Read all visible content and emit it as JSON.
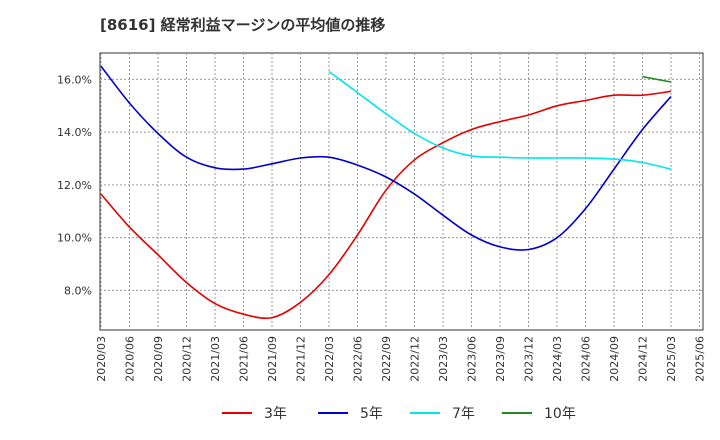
{
  "chart_data": {
    "type": "line",
    "title": "[8616]  経常利益マージンの平均値の推移",
    "xlabel": "",
    "ylabel": "",
    "x_tick_labels": [
      "2020/03",
      "2020/06",
      "2020/09",
      "2020/12",
      "2021/03",
      "2021/06",
      "2021/09",
      "2021/12",
      "2022/03",
      "2022/06",
      "2022/09",
      "2022/12",
      "2023/03",
      "2023/06",
      "2023/09",
      "2023/12",
      "2024/03",
      "2024/06",
      "2024/09",
      "2024/12",
      "2025/03",
      "2025/06"
    ],
    "y_tick_labels": [
      "8.0%",
      "10.0%",
      "12.0%",
      "14.0%",
      "16.0%"
    ],
    "y_ticks": [
      8,
      10,
      12,
      14,
      16
    ],
    "ylim": [
      6.5,
      17.0
    ],
    "grid": true,
    "legend_position": "bottom",
    "series": [
      {
        "name": "3年",
        "color": "#e60000",
        "points": [
          [
            "2020/03",
            11.65
          ],
          [
            "2020/06",
            10.4
          ],
          [
            "2020/09",
            9.35
          ],
          [
            "2020/12",
            8.3
          ],
          [
            "2021/03",
            7.5
          ],
          [
            "2021/06",
            7.1
          ],
          [
            "2021/09",
            6.97
          ],
          [
            "2021/12",
            7.55
          ],
          [
            "2022/03",
            8.6
          ],
          [
            "2022/06",
            10.1
          ],
          [
            "2022/09",
            11.8
          ],
          [
            "2022/12",
            12.95
          ],
          [
            "2023/03",
            13.6
          ],
          [
            "2023/06",
            14.1
          ],
          [
            "2023/09",
            14.4
          ],
          [
            "2023/12",
            14.65
          ],
          [
            "2024/03",
            15.0
          ],
          [
            "2024/06",
            15.2
          ],
          [
            "2024/09",
            15.4
          ],
          [
            "2024/12",
            15.4
          ],
          [
            "2025/03",
            15.55
          ]
        ]
      },
      {
        "name": "5年",
        "color": "#0000cc",
        "points": [
          [
            "2020/03",
            16.5
          ],
          [
            "2020/06",
            15.1
          ],
          [
            "2020/09",
            13.95
          ],
          [
            "2020/12",
            13.05
          ],
          [
            "2021/03",
            12.65
          ],
          [
            "2021/06",
            12.6
          ],
          [
            "2021/09",
            12.8
          ],
          [
            "2021/12",
            13.02
          ],
          [
            "2022/03",
            13.05
          ],
          [
            "2022/06",
            12.75
          ],
          [
            "2022/09",
            12.3
          ],
          [
            "2022/12",
            11.65
          ],
          [
            "2023/03",
            10.85
          ],
          [
            "2023/06",
            10.1
          ],
          [
            "2023/09",
            9.65
          ],
          [
            "2023/12",
            9.55
          ],
          [
            "2024/03",
            10.0
          ],
          [
            "2024/06",
            11.1
          ],
          [
            "2024/09",
            12.6
          ],
          [
            "2024/12",
            14.1
          ],
          [
            "2025/03",
            15.35
          ]
        ]
      },
      {
        "name": "7年",
        "color": "#00e5ee",
        "points": [
          [
            "2022/03",
            16.3
          ],
          [
            "2022/06",
            15.5
          ],
          [
            "2022/09",
            14.7
          ],
          [
            "2022/12",
            13.95
          ],
          [
            "2023/03",
            13.4
          ],
          [
            "2023/06",
            13.1
          ],
          [
            "2023/09",
            13.05
          ],
          [
            "2023/12",
            13.02
          ],
          [
            "2024/03",
            13.02
          ],
          [
            "2024/06",
            13.02
          ],
          [
            "2024/09",
            12.98
          ],
          [
            "2024/12",
            12.85
          ],
          [
            "2025/03",
            12.6
          ]
        ]
      },
      {
        "name": "10年",
        "color": "#228b22",
        "points": [
          [
            "2024/12",
            16.1
          ],
          [
            "2025/03",
            15.9
          ]
        ]
      }
    ]
  }
}
